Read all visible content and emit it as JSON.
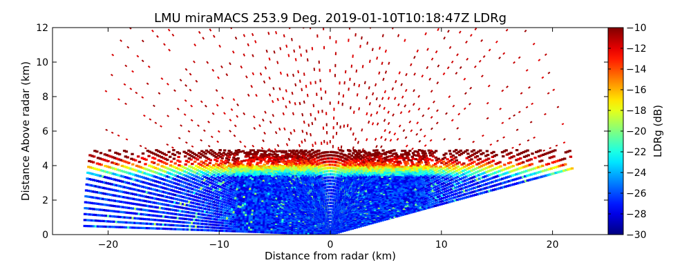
{
  "chart_data": {
    "type": "heatmap",
    "plot_kind": "radar RHI scan (pseudo-color)",
    "title": "LMU miraMACS 253.9 Deg. 2019-01-10T10:18:47Z  LDRg",
    "xlabel": "Distance from radar (km)",
    "ylabel": "Distance Above radar  (km)",
    "xlim": [
      -25,
      25
    ],
    "ylim": [
      0,
      12
    ],
    "x_ticks": [
      -20,
      -10,
      0,
      10,
      20
    ],
    "x_tick_labels": [
      "−20",
      "−10",
      "0",
      "10",
      "20"
    ],
    "y_ticks": [
      0,
      2,
      4,
      6,
      8,
      10,
      12
    ],
    "y_tick_labels": [
      "0",
      "2",
      "4",
      "6",
      "8",
      "10",
      "12"
    ],
    "colorbar": {
      "label": "LDRg (dB)",
      "range": [
        -30,
        -10
      ],
      "colormap": "jet",
      "ticks": [
        -30,
        -28,
        -26,
        -24,
        -22,
        -20,
        -18,
        -16,
        -14,
        -12,
        -10
      ],
      "tick_labels": [
        "−30",
        "−28",
        "−26",
        "−24",
        "−22",
        "−20",
        "−18",
        "−16",
        "−14",
        "−12",
        "−10"
      ]
    },
    "scan": {
      "max_range_km": 22.1,
      "min_elevation_left_deg": 1.3,
      "min_elevation_right_deg": 10.0,
      "bright_band_km": [
        4.0,
        4.8
      ],
      "layers": [
        {
          "name": "melting layer",
          "height_range_km": [
            4.0,
            4.8
          ],
          "ldr_db": -11
        },
        {
          "name": "below melting layer",
          "height_range_km": [
            0.0,
            4.0
          ],
          "ldr_db": -27
        },
        {
          "name": "sparse returns aloft",
          "height_range_km": [
            4.8,
            12.0
          ],
          "ldr_db": -10
        }
      ]
    }
  }
}
